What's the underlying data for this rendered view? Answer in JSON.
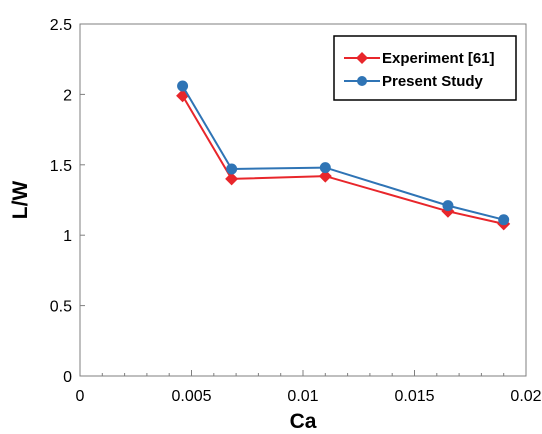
{
  "chart_data": {
    "type": "line",
    "title": "",
    "xlabel": "Ca",
    "ylabel": "L/W",
    "xlim": [
      0,
      0.02
    ],
    "ylim": [
      0,
      2.5
    ],
    "xticks": [
      0,
      0.005,
      0.01,
      0.015,
      0.02
    ],
    "xtick_labels": [
      "0",
      "0.005",
      "0.01",
      "0.015",
      "0.02"
    ],
    "yticks": [
      0,
      0.5,
      1,
      1.5,
      2,
      2.5
    ],
    "ytick_labels": [
      "0",
      "0.5",
      "1",
      "1.5",
      "2",
      "2.5"
    ],
    "x_minor_ticks": true,
    "grid": false,
    "legend_position": "top-right",
    "series": [
      {
        "name": "Experiment [61]",
        "color": "#e8262b",
        "marker": "diamond",
        "x": [
          0.0046,
          0.0068,
          0.011,
          0.0165,
          0.019
        ],
        "y": [
          1.99,
          1.4,
          1.42,
          1.17,
          1.08
        ]
      },
      {
        "name": "Present Study",
        "color": "#2f74b5",
        "marker": "circle",
        "x": [
          0.0046,
          0.0068,
          0.011,
          0.0165,
          0.019
        ],
        "y": [
          2.06,
          1.47,
          1.48,
          1.21,
          1.11
        ]
      }
    ]
  }
}
